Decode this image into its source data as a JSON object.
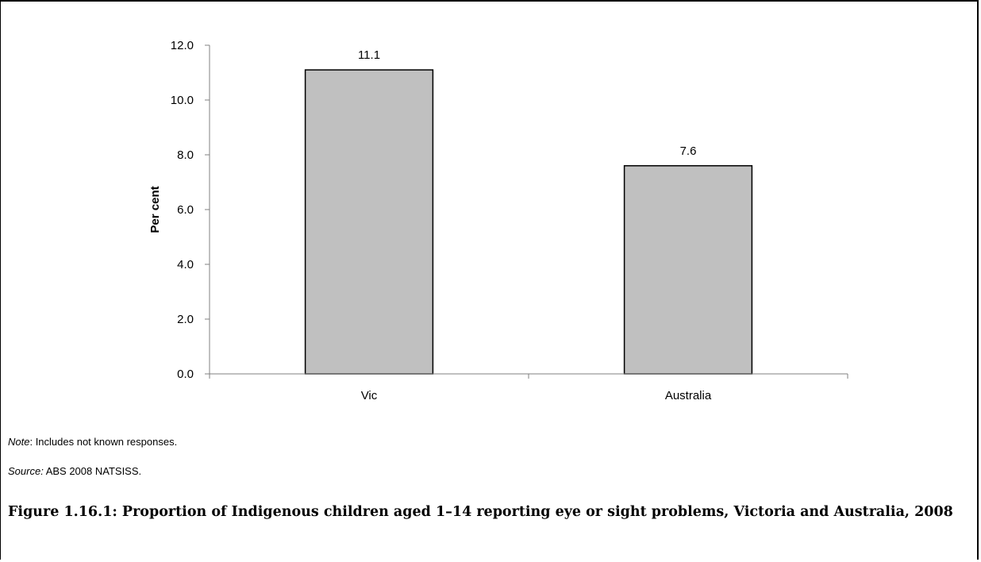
{
  "chart_data": {
    "type": "bar",
    "categories": [
      "Vic",
      "Australia"
    ],
    "values": [
      11.1,
      7.6
    ],
    "data_labels": [
      "11.1",
      "7.6"
    ],
    "ylabel": "Per cent",
    "xlabel": "",
    "ylim": [
      0,
      12
    ],
    "yticks": [
      0,
      2,
      4,
      6,
      8,
      10,
      12
    ],
    "ytick_labels": [
      "0.0",
      "2.0",
      "4.0",
      "6.0",
      "8.0",
      "10.0",
      "12.0"
    ],
    "grid": false,
    "legend": "none",
    "bar_color": "#c0c0c0",
    "bar_edge_color": "#000000"
  },
  "note": {
    "label": "Note",
    "text": ": Includes not known responses."
  },
  "source": {
    "label": "Source:",
    "text": " ABS 2008 NATSISS."
  },
  "caption": "Figure 1.16.1: Proportion of Indigenous children aged 1–14 reporting eye or sight problems, Victoria and Australia, 2008"
}
